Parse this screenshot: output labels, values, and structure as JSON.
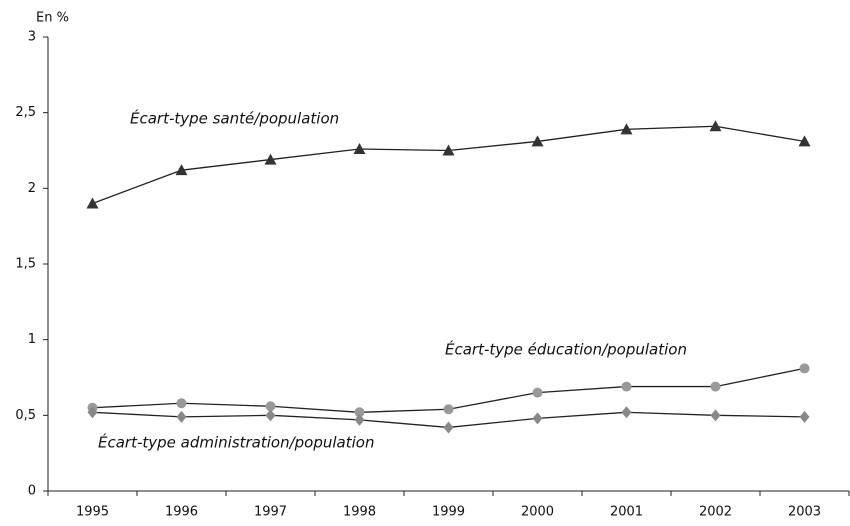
{
  "chart_data": {
    "type": "line",
    "y_label": "En %",
    "categories": [
      "1995",
      "1996",
      "1997",
      "1998",
      "1999",
      "2000",
      "2001",
      "2002",
      "2003"
    ],
    "series": [
      {
        "name": "Écart-type santé/population",
        "color": "#222222",
        "marker": "triangle",
        "marker_color": "#333333",
        "values": [
          1.9,
          2.12,
          2.19,
          2.26,
          2.25,
          2.31,
          2.39,
          2.41,
          2.31
        ]
      },
      {
        "name": "Écart-type éducation/population",
        "color": "#222222",
        "marker": "circle",
        "marker_color": "#999999",
        "values": [
          0.55,
          0.58,
          0.56,
          0.52,
          0.54,
          0.65,
          0.69,
          0.69,
          0.81
        ]
      },
      {
        "name": "Écart-type administration/population",
        "color": "#222222",
        "marker": "diamond",
        "marker_color": "#888888",
        "values": [
          0.52,
          0.49,
          0.5,
          0.47,
          0.42,
          0.48,
          0.52,
          0.5,
          0.49
        ]
      }
    ],
    "ylim": [
      0,
      3
    ],
    "yticks": [
      0,
      {
        "value": 0.5,
        "label": "0,5"
      },
      1,
      {
        "value": 1.5,
        "label": "1,5"
      },
      2,
      {
        "value": 2.5,
        "label": "2,5"
      },
      3
    ],
    "grid": false
  }
}
